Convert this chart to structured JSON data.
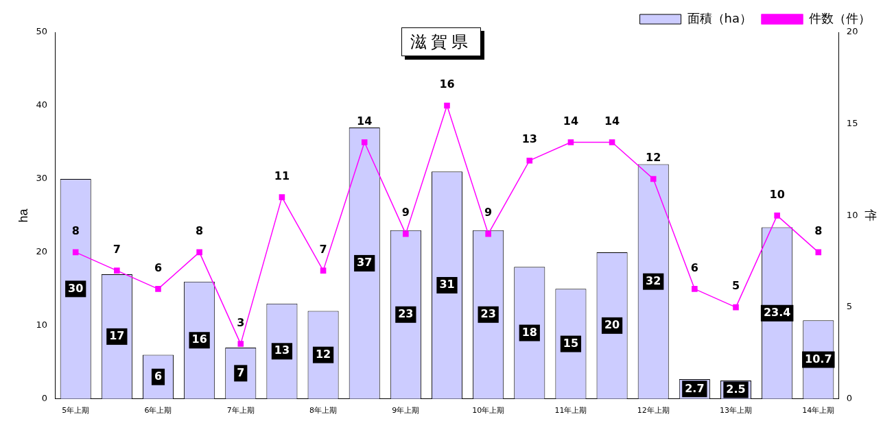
{
  "chart_data": {
    "type": "bar",
    "title": "滋賀県",
    "ylabel": "ha",
    "y2label": "件",
    "categories": [
      "5年上期",
      null,
      "6年上期",
      null,
      "7年上期",
      null,
      "8年上期",
      null,
      "9年上期",
      null,
      "10年上期",
      null,
      "11年上期",
      null,
      "12年上期",
      null,
      "13年上期",
      null,
      "14年上期"
    ],
    "series": [
      {
        "name": "面積（ha）",
        "color": "#ccccff",
        "values": [
          30,
          17,
          6,
          16,
          7,
          13,
          12,
          37,
          23,
          31,
          23,
          18,
          15,
          20,
          32,
          2.7,
          2.5,
          23.4,
          10.7
        ]
      },
      {
        "name": "件数（件）",
        "type": "line",
        "axis": "y2",
        "color": "#ff00ff",
        "values": [
          8,
          7,
          6,
          8,
          3,
          11,
          7,
          14,
          9,
          16,
          9,
          13,
          14,
          14,
          12,
          6,
          5,
          10,
          8
        ]
      }
    ],
    "ylim": [
      0,
      50
    ],
    "yticks": [
      0,
      10,
      20,
      30,
      40,
      50
    ],
    "y2lim": [
      0,
      20
    ],
    "y2ticks": [
      0,
      5,
      10,
      15,
      20
    ],
    "grid": false,
    "legend": "top right",
    "marker": "square",
    "line_style": "solid",
    "data_labels": true
  }
}
